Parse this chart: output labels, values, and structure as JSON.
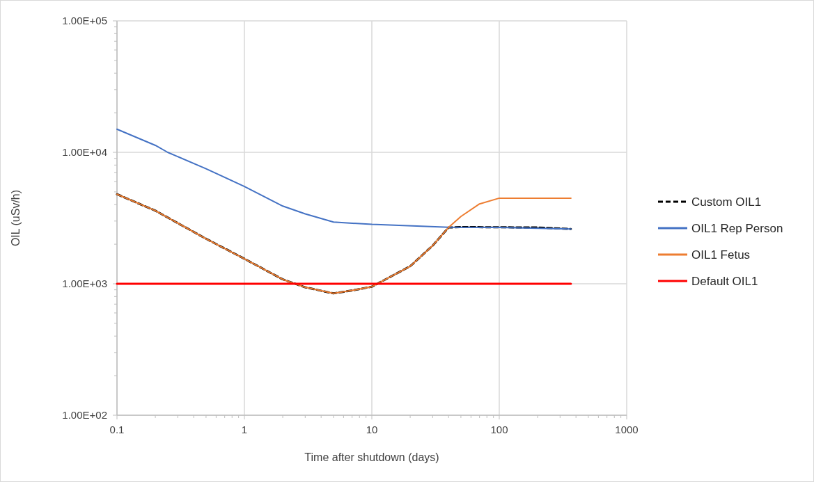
{
  "chart_data": {
    "type": "line",
    "xlabel": "Time after shutdown (days)",
    "ylabel": "OIL (uSv/h)",
    "log": "xy",
    "grid": true,
    "legend": "right",
    "marker": "none",
    "xlim": [
      0.1,
      1000
    ],
    "ylim": [
      100,
      100000
    ],
    "xticks": [
      0.1,
      {
        "value": 0.2,
        "label": null
      },
      {
        "value": 0.3,
        "label": null
      },
      {
        "value": 0.4,
        "label": null
      },
      {
        "value": 0.5,
        "label": null
      },
      {
        "value": 0.6,
        "label": null
      },
      {
        "value": 0.7,
        "label": null
      },
      {
        "value": 0.8,
        "label": null
      },
      {
        "value": 0.9,
        "label": null
      },
      1,
      {
        "value": 2,
        "label": null
      },
      {
        "value": 3,
        "label": null
      },
      {
        "value": 4,
        "label": null
      },
      {
        "value": 5,
        "label": null
      },
      {
        "value": 6,
        "label": null
      },
      {
        "value": 7,
        "label": null
      },
      {
        "value": 8,
        "label": null
      },
      {
        "value": 9,
        "label": null
      },
      10,
      {
        "value": 20,
        "label": null
      },
      {
        "value": 30,
        "label": null
      },
      {
        "value": 40,
        "label": null
      },
      {
        "value": 50,
        "label": null
      },
      {
        "value": 60,
        "label": null
      },
      {
        "value": 70,
        "label": null
      },
      {
        "value": 80,
        "label": null
      },
      {
        "value": 90,
        "label": null
      },
      100,
      {
        "value": 200,
        "label": null
      },
      {
        "value": 300,
        "label": null
      },
      {
        "value": 400,
        "label": null
      },
      {
        "value": 500,
        "label": null
      },
      {
        "value": 600,
        "label": null
      },
      {
        "value": 700,
        "label": null
      },
      {
        "value": 800,
        "label": null
      },
      {
        "value": 900,
        "label": null
      },
      1000
    ],
    "yticks": [
      {
        "value": 100,
        "label": "1.00E+02"
      },
      {
        "value": 200,
        "label": null
      },
      {
        "value": 300,
        "label": null
      },
      {
        "value": 400,
        "label": null
      },
      {
        "value": 500,
        "label": null
      },
      {
        "value": 600,
        "label": null
      },
      {
        "value": 700,
        "label": null
      },
      {
        "value": 800,
        "label": null
      },
      {
        "value": 900,
        "label": null
      },
      {
        "value": 1000,
        "label": "1.00E+03"
      },
      {
        "value": 2000,
        "label": null
      },
      {
        "value": 3000,
        "label": null
      },
      {
        "value": 4000,
        "label": null
      },
      {
        "value": 5000,
        "label": null
      },
      {
        "value": 6000,
        "label": null
      },
      {
        "value": 7000,
        "label": null
      },
      {
        "value": 8000,
        "label": null
      },
      {
        "value": 9000,
        "label": null
      },
      {
        "value": 10000,
        "label": "1.00E+04"
      },
      {
        "value": 20000,
        "label": null
      },
      {
        "value": 30000,
        "label": null
      },
      {
        "value": 40000,
        "label": null
      },
      {
        "value": 50000,
        "label": null
      },
      {
        "value": 60000,
        "label": null
      },
      {
        "value": 70000,
        "label": null
      },
      {
        "value": 80000,
        "label": null
      },
      {
        "value": 90000,
        "label": null
      },
      {
        "value": 100000,
        "label": "1.00E+05"
      }
    ],
    "series": [
      {
        "name": "Custom OIL1",
        "color": "#000000",
        "line_style": "dashed",
        "x": [
          0.1,
          0.2,
          0.5,
          1,
          2,
          3,
          5,
          7,
          10,
          20,
          30,
          40,
          50,
          100,
          200,
          365
        ],
        "values": [
          4800,
          3600,
          2200,
          1550,
          1080,
          940,
          845,
          890,
          950,
          1360,
          1950,
          2680,
          2700,
          2690,
          2680,
          2610
        ]
      },
      {
        "name": "OIL1 Rep Person",
        "color": "#4472c4",
        "line_style": "solid",
        "x": [
          0.1,
          0.2,
          0.25,
          0.5,
          1,
          2,
          3,
          5,
          10,
          40,
          100,
          365
        ],
        "values": [
          15000,
          11300,
          10000,
          7500,
          5500,
          3900,
          3400,
          2950,
          2830,
          2690,
          2680,
          2610
        ]
      },
      {
        "name": "OIL1 Fetus",
        "color": "#ed7d31",
        "line_style": "solid",
        "x": [
          0.1,
          0.2,
          0.5,
          1,
          2,
          3,
          5,
          7,
          10,
          20,
          30,
          40,
          50,
          70,
          100,
          365
        ],
        "values": [
          4800,
          3600,
          2200,
          1550,
          1080,
          940,
          845,
          890,
          950,
          1360,
          1950,
          2680,
          3250,
          4050,
          4480,
          4480
        ]
      },
      {
        "name": "Default OIL1",
        "color": "#ff0000",
        "line_style": "solid",
        "x": [
          0.1,
          365
        ],
        "values": [
          1000,
          1000
        ]
      }
    ]
  }
}
